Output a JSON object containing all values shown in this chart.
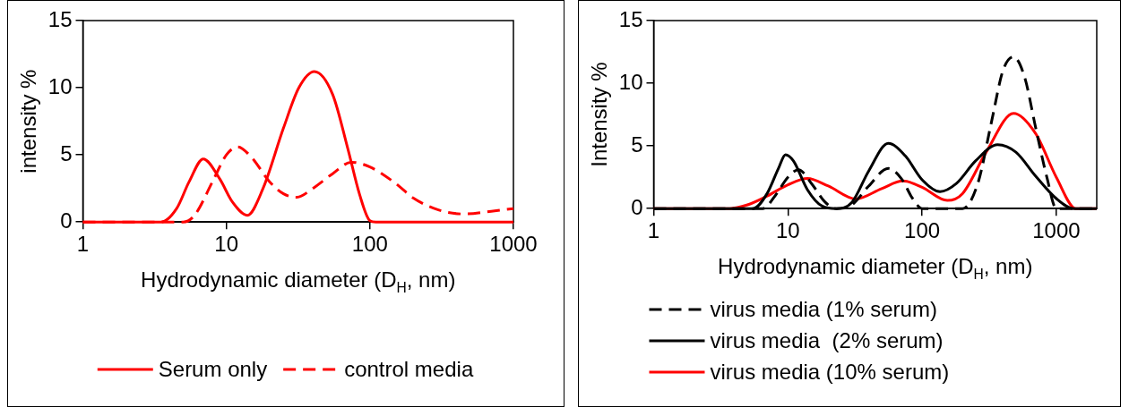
{
  "chart_data": [
    {
      "type": "line",
      "xlabel": "Hydrodynamic diameter (D$_{H}$, nm)",
      "ylabel": "intensity %",
      "log": "x",
      "xlim": [
        1,
        1000
      ],
      "xticks": [
        1,
        10,
        100,
        1000
      ],
      "ylim": [
        0,
        15
      ],
      "yticks": [
        0,
        5,
        10,
        15
      ],
      "grid": false,
      "legend": "bottom",
      "marker": "none",
      "series": [
        {
          "name": "Serum only",
          "color": "#ff0000",
          "line_style": "solid",
          "x": [
            1,
            3.5,
            4.5,
            5.5,
            6.9,
            9,
            11,
            14,
            18,
            25,
            32,
            41,
            55,
            70,
            85,
            100,
            110,
            1000
          ],
          "values": [
            0,
            0,
            1,
            3,
            4.7,
            3.2,
            1.5,
            0.5,
            2.5,
            7,
            10,
            11.2,
            9.5,
            5.5,
            2,
            0.1,
            0,
            0
          ]
        },
        {
          "name": "control media",
          "color": "#ff0000",
          "line_style": "dashed",
          "x": [
            1,
            5,
            6,
            8,
            10,
            12,
            15,
            20,
            25,
            31,
            40,
            55,
            74,
            100,
            150,
            200,
            300,
            450,
            700,
            1000
          ],
          "values": [
            0,
            0,
            0.5,
            3,
            5,
            5.6,
            4.8,
            3,
            2.1,
            1.85,
            2.5,
            3.6,
            4.45,
            4.1,
            2.9,
            1.8,
            0.9,
            0.6,
            0.8,
            1
          ]
        }
      ]
    },
    {
      "type": "line",
      "xlabel": "Hydrodynamic diameter (D$_{H}$, nm)",
      "ylabel": "Intensity %",
      "log": "x",
      "xlim": [
        1,
        2000
      ],
      "xticks": [
        1,
        10,
        100,
        1000
      ],
      "ylim": [
        0,
        15
      ],
      "yticks": [
        0,
        5,
        10,
        15
      ],
      "grid": false,
      "legend": "bottom",
      "marker": "none",
      "series": [
        {
          "name": "virus media (1% serum)",
          "color": "#000000",
          "line_style": "dashed",
          "x": [
            1,
            6.5,
            8,
            10,
            12,
            15,
            19,
            23,
            30,
            40,
            56,
            70,
            85,
            100,
            200,
            260,
            330,
            400,
            480,
            580,
            700,
            850,
            1000,
            2000
          ],
          "values": [
            0,
            0,
            1,
            2.5,
            3.1,
            2,
            0.5,
            0,
            0.3,
            1.8,
            3.2,
            2.4,
            0.8,
            0,
            0,
            2,
            7,
            11,
            12.1,
            10.5,
            6.5,
            2.5,
            0,
            0
          ]
        },
        {
          "name": "virus media  (2% serum)",
          "color": "#000000",
          "line_style": "solid",
          "x": [
            1,
            5.5,
            7,
            8.5,
            9.6,
            11,
            14,
            18,
            23,
            30,
            40,
            56,
            75,
            100,
            136,
            180,
            250,
            365,
            500,
            700,
            1000,
            1350,
            2000
          ],
          "values": [
            0,
            0,
            1.2,
            3.2,
            4.3,
            3.8,
            1.5,
            0.2,
            0,
            0.5,
            3,
            5.2,
            4.2,
            2.3,
            1.35,
            2,
            3.8,
            5.1,
            4.5,
            2.6,
            0.8,
            0,
            0
          ]
        },
        {
          "name": "virus media (10% serum)",
          "color": "#ff0000",
          "line_style": "solid",
          "x": [
            1,
            3.7,
            5,
            7,
            10,
            14,
            20,
            32,
            50,
            72,
            100,
            154,
            200,
            300,
            480,
            700,
            1000,
            1400,
            2000
          ],
          "values": [
            0,
            0,
            0.3,
            1,
            1.9,
            2.4,
            1.8,
            0.77,
            1.6,
            2.2,
            1.7,
            0.65,
            1.2,
            4.5,
            7.6,
            6,
            2.5,
            0,
            0
          ]
        }
      ]
    }
  ]
}
